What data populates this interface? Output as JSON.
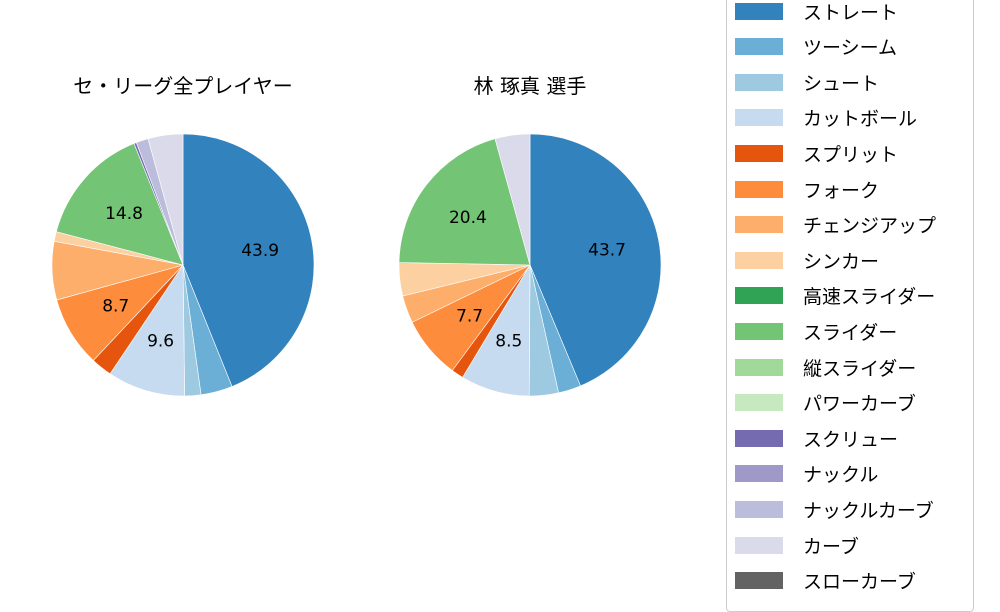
{
  "chart_data": [
    {
      "type": "pie",
      "title": "セ・リーグ全プレイヤー",
      "categories": [
        "ストレート",
        "ツーシーム",
        "シュート",
        "カットボール",
        "スプリット",
        "フォーク",
        "チェンジアップ",
        "シンカー",
        "高速スライダー",
        "スライダー",
        "縦スライダー",
        "パワーカーブ",
        "スクリュー",
        "ナックル",
        "ナックルカーブ",
        "カーブ",
        "スローカーブ"
      ],
      "values": [
        43.9,
        3.9,
        2.0,
        9.6,
        2.6,
        8.7,
        7.2,
        1.2,
        0,
        14.8,
        0,
        0,
        0.3,
        0,
        1.5,
        4.3,
        0
      ],
      "labels_shown": {
        "ストレート": "43.9",
        "カットボール": "9.6",
        "フォーク": "8.7",
        "スライダー": "14.8"
      },
      "startangle": 90,
      "counterclock": false
    },
    {
      "type": "pie",
      "title": "林 琢真  選手",
      "categories": [
        "ストレート",
        "ツーシーム",
        "シュート",
        "カットボール",
        "スプリット",
        "フォーク",
        "チェンジアップ",
        "シンカー",
        "高速スライダー",
        "スライダー",
        "縦スライダー",
        "パワーカーブ",
        "スクリュー",
        "ナックル",
        "ナックルカーブ",
        "カーブ",
        "スローカーブ"
      ],
      "values": [
        43.7,
        2.8,
        3.6,
        8.5,
        1.5,
        7.7,
        3.4,
        4.1,
        0,
        20.4,
        0,
        0,
        0,
        0,
        0,
        4.3,
        0
      ],
      "labels_shown": {
        "ストレート": "43.7",
        "カットボール": "8.5",
        "フォーク": "7.7",
        "スライダー": "20.4"
      },
      "startangle": 90,
      "counterclock": false
    }
  ],
  "titles": {
    "left": "セ・リーグ全プレイヤー",
    "right": "林 琢真  選手"
  },
  "legend": [
    {
      "label": "ストレート",
      "color": "#3182bd"
    },
    {
      "label": "ツーシーム",
      "color": "#6baed6"
    },
    {
      "label": "シュート",
      "color": "#9ecae1"
    },
    {
      "label": "カットボール",
      "color": "#c6dbef"
    },
    {
      "label": "スプリット",
      "color": "#e6550d"
    },
    {
      "label": "フォーク",
      "color": "#fd8d3c"
    },
    {
      "label": "チェンジアップ",
      "color": "#fdae6b"
    },
    {
      "label": "シンカー",
      "color": "#fdd0a2"
    },
    {
      "label": "高速スライダー",
      "color": "#31a354"
    },
    {
      "label": "スライダー",
      "color": "#74c476"
    },
    {
      "label": "縦スライダー",
      "color": "#a1d99b"
    },
    {
      "label": "パワーカーブ",
      "color": "#c7e9c0"
    },
    {
      "label": "スクリュー",
      "color": "#756bb1"
    },
    {
      "label": "ナックル",
      "color": "#9e9ac8"
    },
    {
      "label": "ナックルカーブ",
      "color": "#bcbddc"
    },
    {
      "label": "カーブ",
      "color": "#dadaeb"
    },
    {
      "label": "スローカーブ",
      "color": "#636363"
    }
  ]
}
